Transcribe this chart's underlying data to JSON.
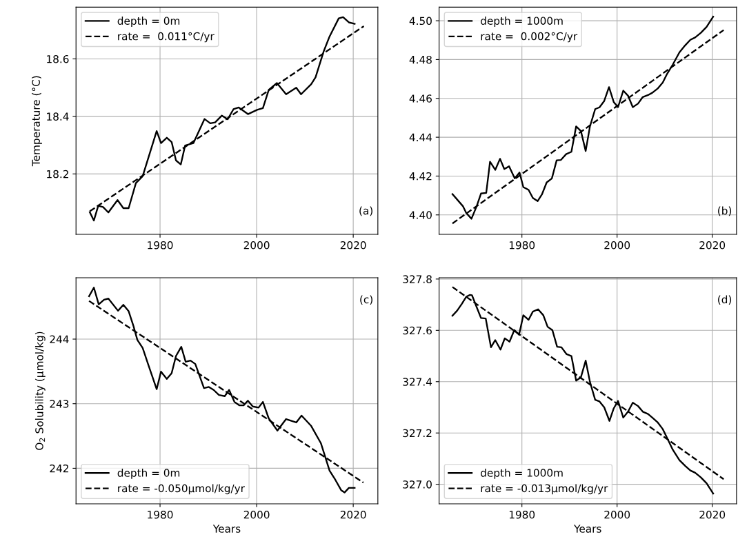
{
  "chart_data": [
    {
      "type": "line",
      "ylabel": "Temperature (°C)",
      "annotations": [
        "(a)"
      ],
      "legend": "top left",
      "grid": true,
      "xlim": [
        1962.6,
        2025.1
      ],
      "xticks": [
        1980,
        2000,
        2020
      ],
      "ylim": [
        17.99,
        18.78
      ],
      "yticks": [
        18.2,
        18.4,
        18.6
      ],
      "series": [
        {
          "name": "depth = 0m",
          "color": "#000000",
          "line_style": "solid",
          "x": [
            1965.45,
            1966.3,
            1967.2,
            1968.2,
            1969.3,
            1971.2,
            1972.4,
            1973.5,
            1975.0,
            1976.4,
            1979.3,
            1980.2,
            1981.4,
            1982.4,
            1983.3,
            1984.3,
            1985.2,
            1986.9,
            1989.2,
            1990.4,
            1991.4,
            1992.8,
            1994.0,
            1995.2,
            1996.3,
            1998.2,
            2000.1,
            2001.3,
            2002.5,
            2004.2,
            2006.1,
            2008.2,
            2009.2,
            2011.3,
            2012.2,
            2013.9,
            2015.1,
            2017.0,
            2017.9,
            2019.1,
            2020.3
          ],
          "values": [
            18.067,
            18.038,
            18.089,
            18.085,
            18.066,
            18.109,
            18.081,
            18.081,
            18.168,
            18.192,
            18.349,
            18.307,
            18.326,
            18.311,
            18.247,
            18.233,
            18.299,
            18.307,
            18.391,
            18.376,
            18.379,
            18.403,
            18.39,
            18.425,
            18.431,
            18.408,
            18.423,
            18.429,
            18.492,
            18.516,
            18.477,
            18.5,
            18.477,
            18.512,
            18.536,
            18.627,
            18.678,
            18.741,
            18.745,
            18.727,
            18.722
          ]
        },
        {
          "name": "rate =  0.011°C/yr",
          "color": "#000000",
          "line_style": "dashed",
          "x": [
            1965.45,
            2022.2
          ],
          "values": [
            18.07,
            18.714
          ]
        }
      ]
    },
    {
      "type": "line",
      "annotations": [
        "(b)"
      ],
      "legend": "top left",
      "grid": true,
      "xlim": [
        1962.6,
        2025.1
      ],
      "xticks": [
        1980,
        2000,
        2020
      ],
      "ylim": [
        4.39,
        4.507
      ],
      "yticks": [
        {
          "value": 4.4,
          "label": "4.40"
        },
        {
          "value": 4.42,
          "label": "4.42"
        },
        {
          "value": 4.44,
          "label": "4.44"
        },
        {
          "value": 4.46,
          "label": "4.46"
        },
        {
          "value": 4.48,
          "label": "4.48"
        },
        {
          "value": 4.5,
          "label": "4.50"
        }
      ],
      "series": [
        {
          "name": "depth = 1000m",
          "color": "#000000",
          "line_style": "solid",
          "x": [
            1965.4,
            1967.6,
            1968.3,
            1969.4,
            1970.5,
            1971.4,
            1972.5,
            1973.3,
            1974.4,
            1975.4,
            1976.3,
            1977.3,
            1978.5,
            1979.5,
            1980.3,
            1981.4,
            1982.3,
            1983.3,
            1984.2,
            1985.2,
            1986.3,
            1987.3,
            1988.2,
            1989.3,
            1990.4,
            1991.4,
            1992.4,
            1993.4,
            1994.3,
            1995.4,
            1996.3,
            1997.3,
            1998.3,
            1999.3,
            2000.2,
            2001.3,
            2002.3,
            2003.3,
            2004.4,
            2005.4,
            2006.5,
            2007.4,
            2008.5,
            2009.6,
            2010.5,
            2011.7,
            2013.1,
            2014.3,
            2015.4,
            2016.4,
            2017.6,
            2018.8,
            2020.2
          ],
          "values": [
            4.4107,
            4.4045,
            4.401,
            4.398,
            4.4045,
            4.411,
            4.4113,
            4.4274,
            4.4232,
            4.4289,
            4.4236,
            4.425,
            4.4188,
            4.4218,
            4.4143,
            4.4129,
            4.4087,
            4.4071,
            4.4105,
            4.4167,
            4.4188,
            4.4281,
            4.4283,
            4.4313,
            4.4325,
            4.4456,
            4.4432,
            4.4329,
            4.4456,
            4.4545,
            4.4554,
            4.4587,
            4.4658,
            4.4581,
            4.4555,
            4.464,
            4.4614,
            4.4555,
            4.4573,
            4.4607,
            4.4617,
            4.4629,
            4.465,
            4.4682,
            4.4726,
            4.4774,
            4.4837,
            4.4873,
            4.4902,
            4.4914,
            4.4938,
            4.4968,
            4.5021
          ]
        },
        {
          "name": "rate =  0.002°C/yr",
          "color": "#000000",
          "line_style": "dashed",
          "x": [
            1965.4,
            2022.4
          ],
          "values": [
            4.3956,
            4.4952
          ]
        }
      ]
    },
    {
      "type": "line",
      "xlabel": "Years",
      "ylabel": "O$_{2}$ Solubility (μmol/kg)",
      "annotations": [
        "(c)"
      ],
      "legend": "bottom left",
      "grid": true,
      "xlim": [
        1962.6,
        2025.1
      ],
      "xticks": [
        1980,
        2000,
        2020
      ],
      "ylim": [
        241.45,
        244.95
      ],
      "yticks": [
        242,
        243,
        244
      ],
      "series": [
        {
          "name": "depth = 0m",
          "color": "#000000",
          "line_style": "solid",
          "x": [
            1965.3,
            1966.3,
            1967.3,
            1968.4,
            1969.3,
            1971.3,
            1972.4,
            1973.5,
            1974.5,
            1975.3,
            1976.4,
            1977.6,
            1979.3,
            1980.2,
            1981.4,
            1982.4,
            1983.3,
            1984.4,
            1985.3,
            1986.3,
            1987.3,
            1989.1,
            1990.1,
            1991.1,
            1992.2,
            1993.4,
            1994.3,
            1995.4,
            1996.4,
            1997.3,
            1998.2,
            1999.2,
            2000.4,
            2001.3,
            2002.5,
            2004.3,
            2006.1,
            2008.2,
            2009.3,
            2011.3,
            2013.3,
            2015.1,
            2016.3,
            2017.5,
            2018.2,
            2019.1,
            2020.3
          ],
          "values": [
            244.663,
            244.798,
            244.538,
            244.609,
            244.627,
            244.439,
            244.531,
            244.432,
            244.201,
            243.988,
            243.863,
            243.597,
            243.224,
            243.497,
            243.384,
            243.472,
            243.739,
            243.881,
            243.65,
            243.668,
            243.615,
            243.242,
            243.259,
            243.213,
            243.135,
            243.117,
            243.213,
            243.028,
            242.975,
            242.975,
            243.046,
            242.957,
            242.94,
            243.028,
            242.773,
            242.584,
            242.762,
            242.709,
            242.815,
            242.655,
            242.389,
            241.963,
            241.821,
            241.661,
            241.625,
            241.696,
            241.696
          ]
        },
        {
          "name": "rate = -0.050μmol/kg/yr",
          "color": "#000000",
          "line_style": "dashed",
          "x": [
            1965.3,
            2022.1
          ],
          "values": [
            244.591,
            241.778
          ]
        }
      ]
    },
    {
      "type": "line",
      "xlabel": "Years",
      "annotations": [
        "(d)"
      ],
      "legend": "bottom left",
      "grid": true,
      "xlim": [
        1962.6,
        2025.1
      ],
      "xticks": [
        1980,
        2000,
        2020
      ],
      "ylim": [
        326.924,
        327.805
      ],
      "yticks": [
        {
          "value": 327,
          "label": "327.0"
        },
        {
          "value": 327.2,
          "label": "327.2"
        },
        {
          "value": 327.4,
          "label": "327.4"
        },
        {
          "value": 327.6,
          "label": "327.6"
        },
        {
          "value": 327.8,
          "label": "327.8"
        }
      ],
      "series": [
        {
          "name": "depth = 1000m",
          "color": "#000000",
          "line_style": "solid",
          "x": [
            1965.4,
            1966.4,
            1967.4,
            1968.3,
            1969.1,
            1969.5,
            1970.5,
            1971.4,
            1972.4,
            1973.5,
            1974.4,
            1975.5,
            1976.4,
            1977.4,
            1978.4,
            1979.4,
            1980.3,
            1981.4,
            1982.3,
            1983.4,
            1984.5,
            1985.4,
            1986.4,
            1987.4,
            1988.3,
            1989.4,
            1990.4,
            1991.4,
            1992.4,
            1993.4,
            1994.3,
            1995.4,
            1996.3,
            1997.3,
            1998.4,
            1999.3,
            2000.2,
            2001.3,
            2002.3,
            2003.3,
            2004.4,
            2005.4,
            2006.5,
            2007.4,
            2008.5,
            2009.6,
            2010.5,
            2011.7,
            2013.1,
            2014.3,
            2015.4,
            2016.4,
            2017.6,
            2018.8,
            2020.2
          ],
          "values": [
            327.657,
            327.677,
            327.704,
            327.731,
            327.738,
            327.737,
            327.69,
            327.648,
            327.646,
            327.534,
            327.562,
            327.525,
            327.569,
            327.556,
            327.601,
            327.583,
            327.659,
            327.641,
            327.673,
            327.682,
            327.659,
            327.614,
            327.601,
            327.536,
            327.534,
            327.507,
            327.5,
            327.404,
            327.417,
            327.482,
            327.399,
            327.329,
            327.323,
            327.3,
            327.247,
            327.296,
            327.325,
            327.26,
            327.283,
            327.318,
            327.305,
            327.283,
            327.274,
            327.26,
            327.242,
            327.215,
            327.181,
            327.135,
            327.094,
            327.072,
            327.054,
            327.045,
            327.027,
            327.004,
            326.964
          ]
        },
        {
          "name": "rate = -0.013μmol/kg/yr",
          "color": "#000000",
          "line_style": "dashed",
          "x": [
            1965.4,
            2022.4
          ],
          "values": [
            327.769,
            327.02
          ]
        }
      ]
    }
  ]
}
